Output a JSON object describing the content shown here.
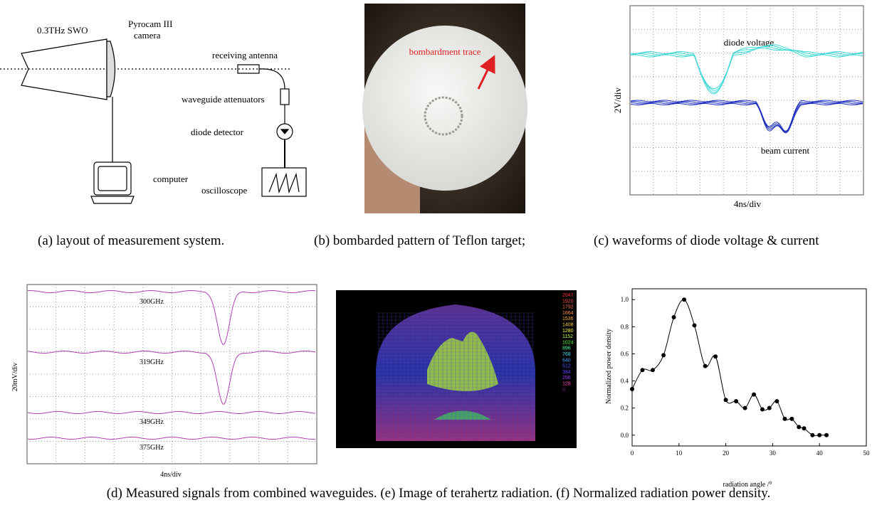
{
  "panel_a": {
    "swo": "0.3THz SWO",
    "camera": [
      "Pyrocam III",
      "camera"
    ],
    "receiving_antenna": "receiving antenna",
    "attenuators": "waveguide attenuators",
    "diode": "diode detector",
    "computer": "computer",
    "oscilloscope": "oscilloscope"
  },
  "panel_b": {
    "annotation": "bombardment trace"
  },
  "panel_c": {
    "diode_voltage": "diode voltage",
    "beam_current": "beam current",
    "y_label": "2V/div",
    "x_label": "4ns/div"
  },
  "panel_d": {
    "traces": [
      "300GHz",
      "319GHz",
      "349GHz",
      "375GHz"
    ],
    "y_label": "20mV/div",
    "x_label": "4ns/div"
  },
  "panel_e": {
    "scale": [
      "2047",
      "1920",
      "1792",
      "1664",
      "1536",
      "1408",
      "1280",
      "1152",
      "1024",
      "896",
      "768",
      "640",
      "512",
      "384",
      "256",
      "128",
      "0"
    ]
  },
  "panel_f": {
    "type": "line",
    "x_label": "radiation angle /⁰",
    "y_label": "Normalized power density",
    "x": [
      0,
      2.2,
      4.4,
      6.7,
      8.9,
      11.1,
      13.3,
      15.6,
      17.8,
      20,
      22.2,
      24.1,
      26,
      27.8,
      29.3,
      30.9,
      32.6,
      34.1,
      35.6,
      36.7,
      38.5,
      40,
      41.5
    ],
    "values": [
      0.34,
      0.48,
      0.48,
      0.59,
      0.87,
      1.0,
      0.81,
      0.51,
      0.58,
      0.26,
      0.25,
      0.2,
      0.3,
      0.19,
      0.2,
      0.25,
      0.12,
      0.12,
      0.06,
      0.05,
      0.0,
      0.0,
      0.0
    ],
    "color": "#000000",
    "xlim": [
      0,
      50
    ],
    "ylim": [
      -0.08,
      1.08
    ],
    "xticks": [
      0,
      10,
      20,
      30,
      40,
      50
    ],
    "yticks": [
      {
        "value": 0,
        "label": "0.0"
      },
      {
        "value": 0.2,
        "label": "0.2"
      },
      {
        "value": 0.4,
        "label": "0.4"
      },
      {
        "value": 0.6,
        "label": "0.6"
      },
      {
        "value": 0.8,
        "label": "0.8"
      },
      {
        "value": 1.0,
        "label": "1.0"
      }
    ]
  },
  "captions_top": [
    "(a) layout of measurement system.",
    "(b) bombarded pattern of Teflon target;",
    "(c) waveforms of diode voltage & current"
  ],
  "captions_bottom": [
    "(d) Measured signals from combined waveguides.",
    "(e) Image of terahertz radiation.",
    "(f) Normalized radiation power density."
  ]
}
